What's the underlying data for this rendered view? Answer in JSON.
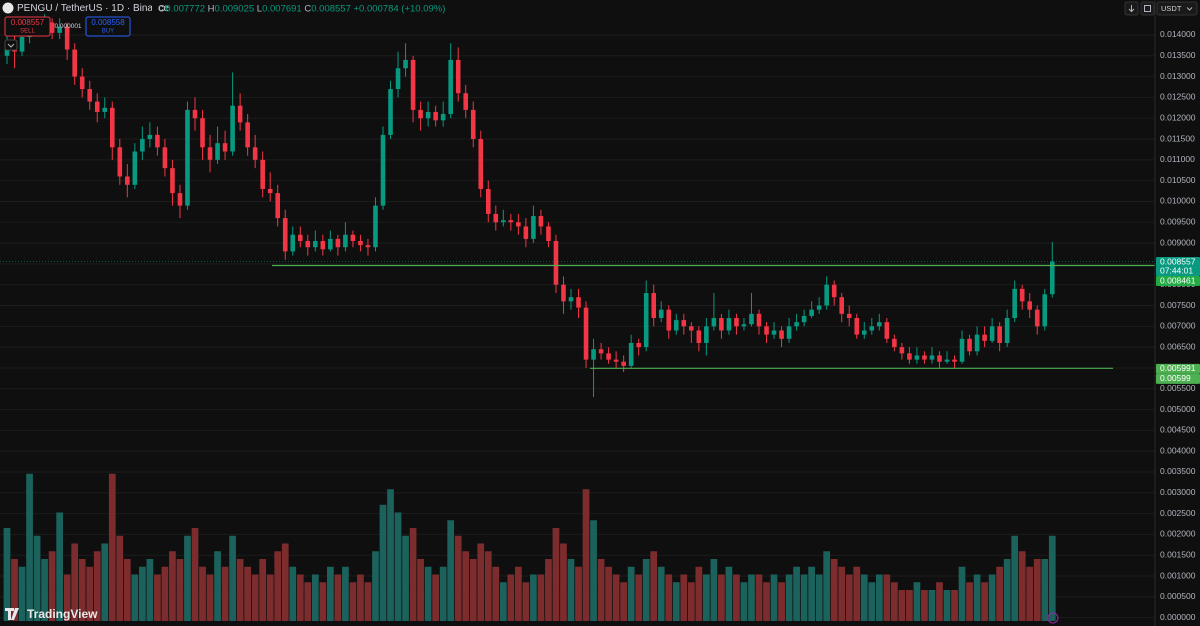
{
  "chart_data": {
    "type": "candlestick",
    "header": {
      "symbol": "PENGU / TetherUS · 1D · Binance",
      "ohlc_letters": [
        "O",
        "H",
        "L",
        "C"
      ],
      "change": "+0.000784 (+10.09%)"
    },
    "trade": {
      "sell_price": 0.008557,
      "sell_label": "SELL",
      "spread": 1e-06,
      "buy_price": 0.008558,
      "buy_label": "BUY"
    },
    "currency": "USDT",
    "watermark": "TradingView",
    "up_color": "#089981",
    "down_color": "#f23645",
    "volume_up_color": "#1c625c",
    "volume_down_color": "#7d2c2e",
    "ylim": [
      -0.0002,
      0.01484
    ],
    "vlim": [
      0,
      100
    ],
    "grid": true,
    "yticks": [
      {
        "value": 0.0,
        "label": "0.000000"
      },
      {
        "value": 0.0005,
        "label": "0.000500"
      },
      {
        "value": 0.001,
        "label": "0.001000"
      },
      {
        "value": 0.0015,
        "label": "0.001500"
      },
      {
        "value": 0.002,
        "label": "0.002000"
      },
      {
        "value": 0.0025,
        "label": "0.002500"
      },
      {
        "value": 0.003,
        "label": "0.003000"
      },
      {
        "value": 0.0035,
        "label": "0.003500"
      },
      {
        "value": 0.004,
        "label": "0.004000"
      },
      {
        "value": 0.0045,
        "label": "0.004500"
      },
      {
        "value": 0.005,
        "label": "0.005000"
      },
      {
        "value": 0.0055,
        "label": "0.005500"
      },
      {
        "value": 0.006,
        "label": "0.006000"
      },
      {
        "value": 0.0065,
        "label": "0.006500"
      },
      {
        "value": 0.007,
        "label": "0.007000"
      },
      {
        "value": 0.0075,
        "label": "0.007500"
      },
      {
        "value": 0.008,
        "label": "0.008000"
      },
      {
        "value": 0.0085,
        "label": "0.008500"
      },
      {
        "value": 0.009,
        "label": "0.009000"
      },
      {
        "value": 0.0095,
        "label": "0.009500"
      },
      {
        "value": 0.01,
        "label": "0.010000"
      },
      {
        "value": 0.0105,
        "label": "0.010500"
      },
      {
        "value": 0.011,
        "label": "0.011000"
      },
      {
        "value": 0.0115,
        "label": "0.011500"
      },
      {
        "value": 0.012,
        "label": "0.012000"
      },
      {
        "value": 0.0125,
        "label": "0.012500"
      },
      {
        "value": 0.013,
        "label": "0.013000"
      },
      {
        "value": 0.0135,
        "label": "0.013500"
      },
      {
        "value": 0.014,
        "label": "0.014000"
      }
    ],
    "price_tags": [
      {
        "value": 0.008557,
        "countdown": "07:44:01",
        "color": "#089981"
      },
      {
        "value": 0.008461,
        "color": "#22ab45"
      },
      {
        "value": 0.005991,
        "color": "#4caf50"
      },
      {
        "value": 0.00599,
        "color": "#4caf50"
      }
    ],
    "level_color": "#4caf50",
    "ohlc": [
      [
        0.0135,
        0.0141,
        0.0133,
        0.01385
      ],
      [
        0.01385,
        0.014,
        0.0132,
        0.0136
      ],
      [
        0.0136,
        0.0141,
        0.0135,
        0.01395
      ],
      [
        0.01395,
        0.0143,
        0.0138,
        0.0141
      ],
      [
        0.0141,
        0.0144,
        0.014,
        0.0142
      ],
      [
        0.0142,
        0.0145,
        0.0141,
        0.0143
      ],
      [
        0.0143,
        0.0144,
        0.0139,
        0.01405
      ],
      [
        0.01405,
        0.0144,
        0.0139,
        0.0142
      ],
      [
        0.0142,
        0.0143,
        0.0134,
        0.01365
      ],
      [
        0.01365,
        0.0138,
        0.0128,
        0.013
      ],
      [
        0.013,
        0.0132,
        0.0125,
        0.0127
      ],
      [
        0.0127,
        0.0129,
        0.0122,
        0.0124
      ],
      [
        0.0124,
        0.0126,
        0.0119,
        0.01215
      ],
      [
        0.01215,
        0.0125,
        0.012,
        0.01225
      ],
      [
        0.01225,
        0.0124,
        0.011,
        0.0113
      ],
      [
        0.0113,
        0.0115,
        0.0104,
        0.0106
      ],
      [
        0.0106,
        0.0109,
        0.0101,
        0.0104
      ],
      [
        0.0104,
        0.0114,
        0.0103,
        0.0112
      ],
      [
        0.0112,
        0.0118,
        0.011,
        0.0115
      ],
      [
        0.0115,
        0.0119,
        0.0113,
        0.0116
      ],
      [
        0.0116,
        0.0118,
        0.0111,
        0.0113
      ],
      [
        0.0113,
        0.0115,
        0.0106,
        0.0108
      ],
      [
        0.0108,
        0.011,
        0.0099,
        0.0102
      ],
      [
        0.0102,
        0.0104,
        0.0096,
        0.0099
      ],
      [
        0.0099,
        0.0124,
        0.0098,
        0.0122
      ],
      [
        0.0122,
        0.0125,
        0.0117,
        0.012
      ],
      [
        0.012,
        0.0122,
        0.011,
        0.0113
      ],
      [
        0.0113,
        0.0116,
        0.0107,
        0.011
      ],
      [
        0.011,
        0.0118,
        0.0109,
        0.0114
      ],
      [
        0.0114,
        0.0117,
        0.011,
        0.0112
      ],
      [
        0.0112,
        0.0131,
        0.0111,
        0.0123
      ],
      [
        0.0123,
        0.0126,
        0.0117,
        0.0119
      ],
      [
        0.0119,
        0.0121,
        0.0111,
        0.0113
      ],
      [
        0.0113,
        0.0116,
        0.0108,
        0.011
      ],
      [
        0.011,
        0.0112,
        0.0101,
        0.0103
      ],
      [
        0.0103,
        0.0107,
        0.01,
        0.0102
      ],
      [
        0.0102,
        0.0104,
        0.0094,
        0.0096
      ],
      [
        0.0096,
        0.0098,
        0.0086,
        0.0088
      ],
      [
        0.0088,
        0.0094,
        0.0087,
        0.0092
      ],
      [
        0.0092,
        0.0094,
        0.0089,
        0.00905
      ],
      [
        0.00905,
        0.0092,
        0.0087,
        0.0089
      ],
      [
        0.0089,
        0.0093,
        0.0088,
        0.00905
      ],
      [
        0.00905,
        0.0092,
        0.0087,
        0.00885
      ],
      [
        0.00885,
        0.0093,
        0.0088,
        0.0091
      ],
      [
        0.0091,
        0.0092,
        0.0087,
        0.0089
      ],
      [
        0.0089,
        0.0095,
        0.0088,
        0.0092
      ],
      [
        0.0092,
        0.0093,
        0.0089,
        0.00905
      ],
      [
        0.00905,
        0.0092,
        0.0088,
        0.00895
      ],
      [
        0.00895,
        0.0091,
        0.0087,
        0.0089
      ],
      [
        0.0089,
        0.0101,
        0.0088,
        0.0099
      ],
      [
        0.0099,
        0.0118,
        0.0098,
        0.0116
      ],
      [
        0.0116,
        0.0129,
        0.0115,
        0.0127
      ],
      [
        0.0127,
        0.0136,
        0.0125,
        0.0132
      ],
      [
        0.0132,
        0.0138,
        0.013,
        0.0134
      ],
      [
        0.0134,
        0.0135,
        0.0119,
        0.0122
      ],
      [
        0.0122,
        0.0124,
        0.0117,
        0.012
      ],
      [
        0.012,
        0.0124,
        0.0118,
        0.01215
      ],
      [
        0.01215,
        0.0123,
        0.0118,
        0.01195
      ],
      [
        0.01195,
        0.0124,
        0.0118,
        0.0121
      ],
      [
        0.0121,
        0.0138,
        0.012,
        0.0134
      ],
      [
        0.0134,
        0.0137,
        0.0124,
        0.0126
      ],
      [
        0.0126,
        0.0128,
        0.012,
        0.0122
      ],
      [
        0.0122,
        0.0124,
        0.0113,
        0.0115
      ],
      [
        0.0115,
        0.0117,
        0.0101,
        0.0103
      ],
      [
        0.0103,
        0.0105,
        0.0095,
        0.0097
      ],
      [
        0.0097,
        0.0099,
        0.0093,
        0.0095
      ],
      [
        0.0095,
        0.0098,
        0.0094,
        0.00955
      ],
      [
        0.00955,
        0.0097,
        0.0093,
        0.0095
      ],
      [
        0.0095,
        0.0097,
        0.0092,
        0.0094
      ],
      [
        0.0094,
        0.0096,
        0.0089,
        0.0091
      ],
      [
        0.0091,
        0.0099,
        0.009,
        0.00965
      ],
      [
        0.00965,
        0.0098,
        0.0092,
        0.0094
      ],
      [
        0.0094,
        0.0095,
        0.0089,
        0.00905
      ],
      [
        0.00905,
        0.0092,
        0.0078,
        0.008
      ],
      [
        0.008,
        0.0082,
        0.0073,
        0.0076
      ],
      [
        0.0076,
        0.0079,
        0.0074,
        0.0077
      ],
      [
        0.0077,
        0.0079,
        0.0072,
        0.00745
      ],
      [
        0.00745,
        0.0076,
        0.006,
        0.0062
      ],
      [
        0.0062,
        0.0067,
        0.0053,
        0.00645
      ],
      [
        0.00645,
        0.0066,
        0.0062,
        0.00635
      ],
      [
        0.00635,
        0.0065,
        0.0061,
        0.0062
      ],
      [
        0.0062,
        0.0064,
        0.006,
        0.00615
      ],
      [
        0.00615,
        0.0063,
        0.0059,
        0.00605
      ],
      [
        0.00605,
        0.0068,
        0.006,
        0.0066
      ],
      [
        0.0066,
        0.0067,
        0.0063,
        0.0065
      ],
      [
        0.0065,
        0.0081,
        0.0064,
        0.0078
      ],
      [
        0.0078,
        0.008,
        0.007,
        0.0072
      ],
      [
        0.0072,
        0.0076,
        0.0071,
        0.0074
      ],
      [
        0.0074,
        0.0075,
        0.0067,
        0.0069
      ],
      [
        0.0069,
        0.0073,
        0.0068,
        0.00715
      ],
      [
        0.00715,
        0.0073,
        0.0068,
        0.007
      ],
      [
        0.007,
        0.0071,
        0.0066,
        0.0069
      ],
      [
        0.0069,
        0.007,
        0.0064,
        0.0066
      ],
      [
        0.0066,
        0.0072,
        0.0063,
        0.007
      ],
      [
        0.007,
        0.0078,
        0.0069,
        0.0072
      ],
      [
        0.0072,
        0.0073,
        0.0067,
        0.0069
      ],
      [
        0.0069,
        0.0074,
        0.0068,
        0.0072
      ],
      [
        0.0072,
        0.0073,
        0.0068,
        0.007
      ],
      [
        0.007,
        0.0072,
        0.0069,
        0.00705
      ],
      [
        0.00705,
        0.0078,
        0.007,
        0.0073
      ],
      [
        0.0073,
        0.0074,
        0.0068,
        0.007
      ],
      [
        0.007,
        0.0071,
        0.0066,
        0.0068
      ],
      [
        0.0068,
        0.0071,
        0.0067,
        0.0069
      ],
      [
        0.0069,
        0.007,
        0.0065,
        0.0067
      ],
      [
        0.0067,
        0.0072,
        0.0066,
        0.007
      ],
      [
        0.007,
        0.0073,
        0.0069,
        0.0071
      ],
      [
        0.0071,
        0.0074,
        0.007,
        0.00725
      ],
      [
        0.00725,
        0.0076,
        0.0072,
        0.0074
      ],
      [
        0.0074,
        0.0077,
        0.0073,
        0.0075
      ],
      [
        0.0075,
        0.0082,
        0.0074,
        0.008
      ],
      [
        0.008,
        0.0081,
        0.0075,
        0.0077
      ],
      [
        0.0077,
        0.0078,
        0.0071,
        0.0073
      ],
      [
        0.0073,
        0.0075,
        0.007,
        0.0072
      ],
      [
        0.0072,
        0.0073,
        0.0067,
        0.0068
      ],
      [
        0.0068,
        0.0071,
        0.0067,
        0.0069
      ],
      [
        0.0069,
        0.0072,
        0.0068,
        0.007
      ],
      [
        0.007,
        0.0073,
        0.0069,
        0.0071
      ],
      [
        0.0071,
        0.0072,
        0.0066,
        0.0067
      ],
      [
        0.0067,
        0.0068,
        0.0064,
        0.0065
      ],
      [
        0.0065,
        0.0066,
        0.0062,
        0.00635
      ],
      [
        0.00635,
        0.0065,
        0.0061,
        0.0062
      ],
      [
        0.0062,
        0.0065,
        0.0061,
        0.0063
      ],
      [
        0.0063,
        0.0064,
        0.0061,
        0.0062
      ],
      [
        0.0062,
        0.0065,
        0.0061,
        0.0063
      ],
      [
        0.0063,
        0.0064,
        0.006,
        0.00615
      ],
      [
        0.00615,
        0.0064,
        0.0061,
        0.0062
      ],
      [
        0.0062,
        0.0063,
        0.006,
        0.00615
      ],
      [
        0.00615,
        0.0069,
        0.0061,
        0.0067
      ],
      [
        0.0067,
        0.0068,
        0.0063,
        0.0064
      ],
      [
        0.0064,
        0.007,
        0.0063,
        0.0068
      ],
      [
        0.0068,
        0.007,
        0.0065,
        0.00665
      ],
      [
        0.00665,
        0.0072,
        0.0066,
        0.007
      ],
      [
        0.007,
        0.0071,
        0.0064,
        0.0066
      ],
      [
        0.0066,
        0.0074,
        0.0065,
        0.0072
      ],
      [
        0.0072,
        0.0081,
        0.0071,
        0.0079
      ],
      [
        0.0079,
        0.008,
        0.0074,
        0.0076
      ],
      [
        0.0076,
        0.0078,
        0.0072,
        0.0074
      ],
      [
        0.0074,
        0.0075,
        0.0068,
        0.007
      ],
      [
        0.007,
        0.0079,
        0.0069,
        0.00777
      ],
      [
        0.007772,
        0.009025,
        0.007691,
        0.008557
      ]
    ],
    "volume": [
      60,
      40,
      35,
      95,
      55,
      40,
      45,
      70,
      30,
      50,
      40,
      35,
      45,
      50,
      95,
      55,
      40,
      30,
      35,
      40,
      30,
      35,
      45,
      40,
      55,
      60,
      35,
      30,
      45,
      35,
      55,
      40,
      35,
      30,
      40,
      30,
      45,
      50,
      35,
      30,
      25,
      30,
      25,
      35,
      30,
      35,
      25,
      30,
      25,
      45,
      75,
      85,
      70,
      55,
      60,
      40,
      35,
      30,
      35,
      65,
      55,
      45,
      40,
      50,
      45,
      35,
      25,
      30,
      35,
      25,
      30,
      30,
      40,
      60,
      50,
      40,
      35,
      85,
      65,
      40,
      35,
      30,
      25,
      35,
      30,
      40,
      45,
      35,
      30,
      25,
      30,
      25,
      35,
      30,
      40,
      30,
      35,
      30,
      25,
      30,
      30,
      25,
      30,
      25,
      30,
      35,
      30,
      35,
      30,
      45,
      40,
      35,
      30,
      35,
      30,
      25,
      30,
      30,
      25,
      20,
      20,
      25,
      20,
      20,
      25,
      20,
      20,
      35,
      25,
      30,
      25,
      30,
      35,
      40,
      55,
      45,
      35,
      40,
      40,
      55
    ]
  }
}
